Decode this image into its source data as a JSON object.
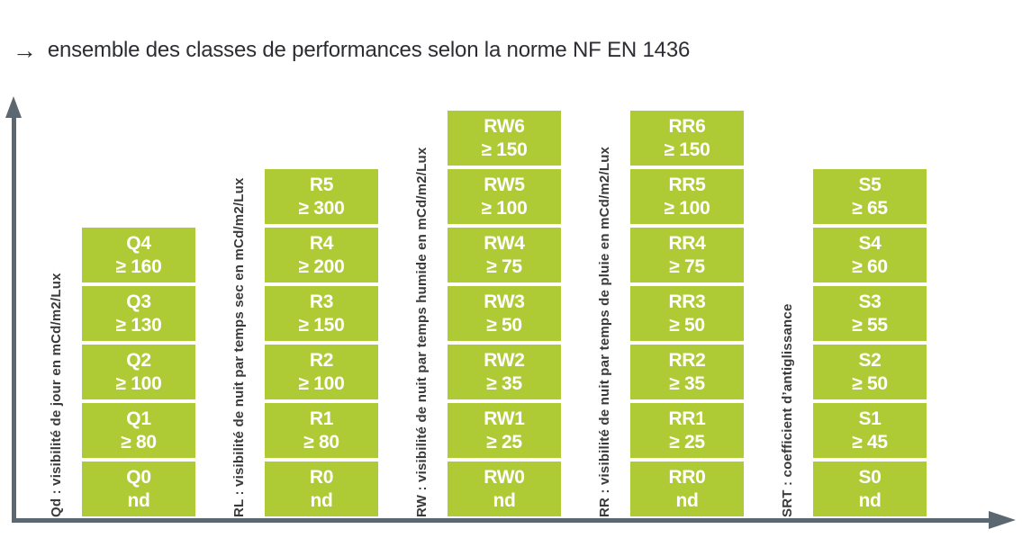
{
  "title": {
    "arrow": "→",
    "text": "ensemble des classes de performances selon la norme NF EN 1436"
  },
  "colors": {
    "block_green": "#aecb35",
    "axis_gray": "#5b6771",
    "label_text": "#3a3a3a",
    "block_text": "#ffffff",
    "title_text": "#2d2e33",
    "background": "#ffffff"
  },
  "chart_data": {
    "type": "table",
    "title": "ensemble des classes de performances selon la norme NF EN 1436",
    "legend_position": "none",
    "grid": false,
    "axes": "unscaled arrow axes (vertical left, horizontal bottom)",
    "blocks_ordered": "top-to-bottom",
    "columns_bottom_aligned": true,
    "columns": [
      {
        "id": "Qd",
        "axis_label": "Qd : visibilité de jour en mCd/m2/Lux",
        "classes": [
          {
            "name": "Q4",
            "threshold": "≥ 160"
          },
          {
            "name": "Q3",
            "threshold": "≥ 130"
          },
          {
            "name": "Q2",
            "threshold": "≥ 100"
          },
          {
            "name": "Q1",
            "threshold": "≥ 80"
          },
          {
            "name": "Q0",
            "threshold": "nd"
          }
        ]
      },
      {
        "id": "RL",
        "axis_label": "RL : visibilité de nuit par temps sec en mCd/m2/Lux",
        "classes": [
          {
            "name": "R5",
            "threshold": "≥ 300"
          },
          {
            "name": "R4",
            "threshold": "≥ 200"
          },
          {
            "name": "R3",
            "threshold": "≥ 150"
          },
          {
            "name": "R2",
            "threshold": "≥ 100"
          },
          {
            "name": "R1",
            "threshold": "≥ 80"
          },
          {
            "name": "R0",
            "threshold": "nd"
          }
        ]
      },
      {
        "id": "RW",
        "axis_label": "RW : visibilité de nuit par temps humide en mCd/m2/Lux",
        "classes": [
          {
            "name": "RW6",
            "threshold": "≥ 150"
          },
          {
            "name": "RW5",
            "threshold": "≥ 100"
          },
          {
            "name": "RW4",
            "threshold": "≥ 75"
          },
          {
            "name": "RW3",
            "threshold": "≥ 50"
          },
          {
            "name": "RW2",
            "threshold": "≥ 35"
          },
          {
            "name": "RW1",
            "threshold": "≥ 25"
          },
          {
            "name": "RW0",
            "threshold": "nd"
          }
        ]
      },
      {
        "id": "RR",
        "axis_label": "RR : visibilité de nuit par temps de pluie en mCd/m2/Lux",
        "classes": [
          {
            "name": "RR6",
            "threshold": "≥ 150"
          },
          {
            "name": "RR5",
            "threshold": "≥ 100"
          },
          {
            "name": "RR4",
            "threshold": "≥ 75"
          },
          {
            "name": "RR3",
            "threshold": "≥ 50"
          },
          {
            "name": "RR2",
            "threshold": "≥ 35"
          },
          {
            "name": "RR1",
            "threshold": "≥ 25"
          },
          {
            "name": "RR0",
            "threshold": "nd"
          }
        ]
      },
      {
        "id": "SRT",
        "axis_label": "SRT : coefficient d’antiglissance",
        "classes": [
          {
            "name": "S5",
            "threshold": "≥ 65"
          },
          {
            "name": "S4",
            "threshold": "≥ 60"
          },
          {
            "name": "S3",
            "threshold": "≥ 55"
          },
          {
            "name": "S2",
            "threshold": "≥ 50"
          },
          {
            "name": "S1",
            "threshold": "≥ 45"
          },
          {
            "name": "S0",
            "threshold": "nd"
          }
        ]
      }
    ]
  }
}
